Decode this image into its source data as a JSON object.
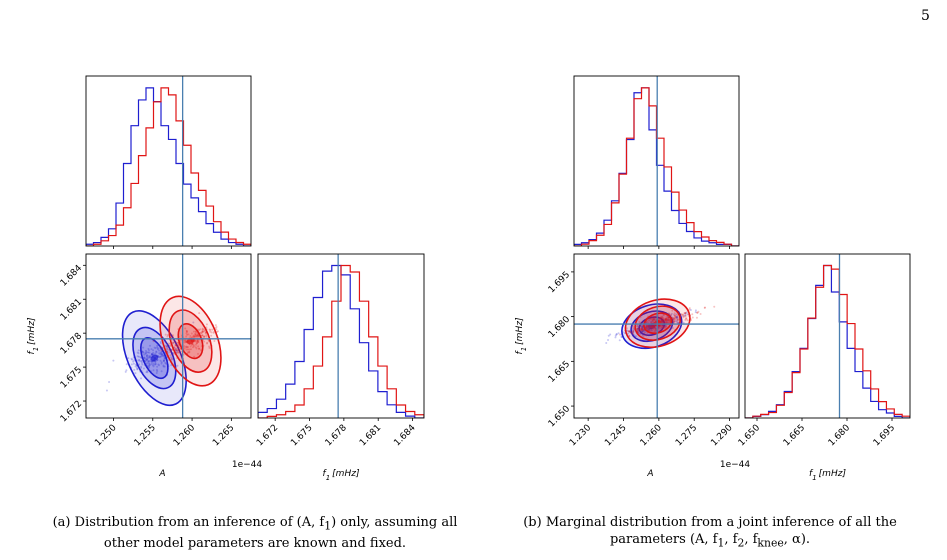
{
  "page_number": "5",
  "captions": {
    "a_label": "(a)",
    "a_text": "Distribution from an inference of (A, f",
    "a_sub": "1",
    "a_tail": ") only, assuming all other model parameters are known and fixed.",
    "b_label": "(b)",
    "b_text": "Marginal distribution from a joint inference of all the parameters (A, f",
    "b_sub1": "1",
    "b_mid1": ", f",
    "b_sub2": "2",
    "b_mid2": ", f",
    "b_sub3": "knee",
    "b_tail": ", α)."
  },
  "colors": {
    "series1": "#1f1fd0",
    "series2": "#e01515",
    "truth": "#4a7fb0",
    "axis": "#000000"
  },
  "chart_data": [
    {
      "type": "corner",
      "panel": "a",
      "params": [
        {
          "label": "A",
          "ticks": [
            "1.250",
            "1.255",
            "1.260",
            "1.265"
          ],
          "tick_values": [
            1.25,
            1.255,
            1.26,
            1.265
          ],
          "range": [
            1.2465,
            1.2675
          ],
          "offset_text": "1e−44",
          "truth": 1.2588
        },
        {
          "label_main": "f",
          "label_sub": "1",
          "label_unit": "[mHz]",
          "ticks": [
            "1.672",
            "1.675",
            "1.678",
            "1.681",
            "1.684"
          ],
          "tick_values": [
            1.672,
            1.675,
            1.678,
            1.681,
            1.684
          ],
          "range": [
            1.6705,
            1.685
          ],
          "truth": 1.6775
        }
      ],
      "series": [
        {
          "name": "",
          "color": "series1",
          "hist_A": [
            1,
            2,
            5,
            10,
            25,
            48,
            70,
            85,
            92,
            84,
            70,
            62,
            48,
            36,
            28,
            20,
            13,
            8,
            4,
            2,
            1,
            0
          ],
          "hist_f1": [
            3,
            5,
            10,
            18,
            30,
            47,
            64,
            78,
            81,
            76,
            58,
            40,
            25,
            14,
            7,
            3,
            1,
            0
          ],
          "center": [
            1.2552,
            1.6758
          ],
          "contours": [
            [
              0.0033,
              0.0014,
              -25
            ],
            [
              0.0023,
              0.0009,
              -25
            ],
            [
              0.0014,
              0.0006,
              -25
            ]
          ]
        },
        {
          "name": "",
          "color": "series2",
          "hist_A": [
            0,
            1,
            3,
            6,
            12,
            22,
            36,
            52,
            68,
            83,
            91,
            87,
            72,
            58,
            42,
            32,
            23,
            14,
            8,
            4,
            2,
            1
          ],
          "hist_f1": [
            0,
            1,
            2,
            4,
            8,
            18,
            32,
            50,
            72,
            94,
            90,
            72,
            50,
            32,
            18,
            8,
            4,
            2
          ],
          "center": [
            1.2598,
            1.6773
          ],
          "contours": [
            [
              0.0034,
              0.0013,
              -22
            ],
            [
              0.0024,
              0.0009,
              -22
            ],
            [
              0.0014,
              0.0005,
              -22
            ]
          ]
        }
      ]
    },
    {
      "type": "corner",
      "panel": "b",
      "params": [
        {
          "label": "A",
          "ticks": [
            "1.230",
            "1.245",
            "1.260",
            "1.275",
            "1.290"
          ],
          "tick_values": [
            1.23,
            1.245,
            1.26,
            1.275,
            1.29
          ],
          "range": [
            1.224,
            1.294
          ],
          "offset_text": "1e−44",
          "truth": 1.2593
        },
        {
          "label_main": "f",
          "label_sub": "1",
          "label_unit": "[mHz]",
          "ticks": [
            "1.650",
            "1.665",
            "1.680",
            "1.695"
          ],
          "tick_values": [
            1.65,
            1.665,
            1.68,
            1.695
          ],
          "range": [
            1.646,
            1.701
          ],
          "truth": 1.6775
        }
      ],
      "series": [
        {
          "name": "",
          "color": "series1",
          "hist_A": [
            1,
            2,
            4,
            8,
            16,
            28,
            45,
            66,
            95,
            98,
            72,
            50,
            34,
            22,
            14,
            9,
            5,
            3,
            2,
            1,
            1,
            0
          ],
          "hist_f1": [
            0,
            1,
            2,
            4,
            8,
            16,
            28,
            42,
            60,
            80,
            92,
            76,
            58,
            42,
            28,
            18,
            10,
            5,
            3,
            1,
            0
          ],
          "center": [
            1.257,
            1.6768
          ],
          "contours": [
            [
              0.013,
              0.0022,
              -18
            ],
            [
              0.009,
              0.0015,
              -18
            ],
            [
              0.0055,
              0.0009,
              -18
            ]
          ]
        },
        {
          "name": "",
          "color": "series2",
          "hist_A": [
            0,
            1,
            3,
            6,
            12,
            24,
            40,
            60,
            82,
            88,
            78,
            60,
            44,
            30,
            20,
            13,
            8,
            5,
            3,
            2,
            1,
            0
          ],
          "hist_f1": [
            0,
            1,
            2,
            3,
            7,
            14,
            25,
            38,
            55,
            72,
            84,
            82,
            68,
            52,
            38,
            26,
            16,
            9,
            5,
            2,
            1
          ],
          "center": [
            1.2595,
            1.6778
          ],
          "contours": [
            [
              0.014,
              0.0024,
              -18
            ],
            [
              0.0098,
              0.0017,
              -18
            ],
            [
              0.006,
              0.001,
              -18
            ]
          ]
        }
      ]
    }
  ]
}
